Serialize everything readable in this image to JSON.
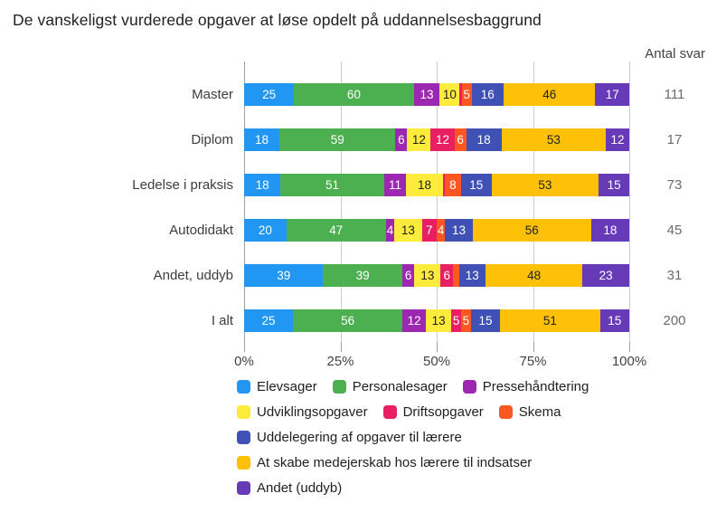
{
  "title": "De vanskeligst vurderede opgaver at løse opdelt på uddannelsesbaggrund",
  "antal_svar_header": "Antal svar",
  "chart_data": {
    "type": "bar",
    "subtype": "horizontal-stacked-normalized",
    "title": "De vanskeligst vurderede opgaver at løse opdelt på uddannelsesbaggrund",
    "xlabel": "",
    "ylabel": "",
    "x_axis_ticks": [
      "0%",
      "25%",
      "50%",
      "75%",
      "100%"
    ],
    "x_axis_range_percent": [
      0,
      100
    ],
    "grid": "vertical-gridlines-on",
    "legend_position": "bottom-left",
    "categories": [
      "Master",
      "Diplom",
      "Ledelse i praksis",
      "Autodidakt",
      "Andet, uddyb",
      "I alt"
    ],
    "antal_svar_label": "Antal svar",
    "antal_svar": [
      111,
      17,
      73,
      45,
      31,
      200
    ],
    "series": [
      {
        "name": "Elevsager",
        "color": "#2196F3",
        "label_color": "#ffffff",
        "values": [
          25,
          18,
          18,
          20,
          39,
          25
        ]
      },
      {
        "name": "Personalesager",
        "color": "#4CAF50",
        "label_color": "#ffffff",
        "values": [
          60,
          59,
          51,
          47,
          39,
          56
        ]
      },
      {
        "name": "Pressehåndtering",
        "color": "#9C27B0",
        "label_color": "#ffffff",
        "values": [
          13,
          6,
          11,
          4,
          6,
          12
        ]
      },
      {
        "name": "Udviklingsopgaver",
        "color": "#FFEB3B",
        "label_color": "#212121",
        "values": [
          10,
          12,
          18,
          13,
          13,
          13
        ]
      },
      {
        "name": "Driftsopgaver",
        "color": "#E91E63",
        "label_color": "#ffffff",
        "values": [
          1,
          12,
          1,
          7,
          6,
          5
        ]
      },
      {
        "name": "Skema",
        "color": "#FF5722",
        "label_color": "#ffffff",
        "values": [
          5,
          6,
          8,
          4,
          3,
          5
        ]
      },
      {
        "name": "Uddelegering af opgaver til lærere",
        "color": "#3F51B5",
        "label_color": "#ffffff",
        "values": [
          16,
          18,
          15,
          13,
          13,
          15
        ]
      },
      {
        "name": "At skabe medejerskab hos lærere til indsatser",
        "color": "#FFC107",
        "label_color": "#212121",
        "values": [
          46,
          53,
          53,
          56,
          48,
          51
        ]
      },
      {
        "name": "Andet (uddyb)",
        "color": "#673AB7",
        "label_color": "#ffffff",
        "values": [
          17,
          12,
          15,
          18,
          23,
          15
        ]
      }
    ],
    "min_value_for_segment_label": 4,
    "legend_rows": [
      [
        0,
        1,
        2
      ],
      [
        3,
        4,
        5
      ],
      [
        6
      ],
      [
        7
      ],
      [
        8
      ]
    ]
  }
}
